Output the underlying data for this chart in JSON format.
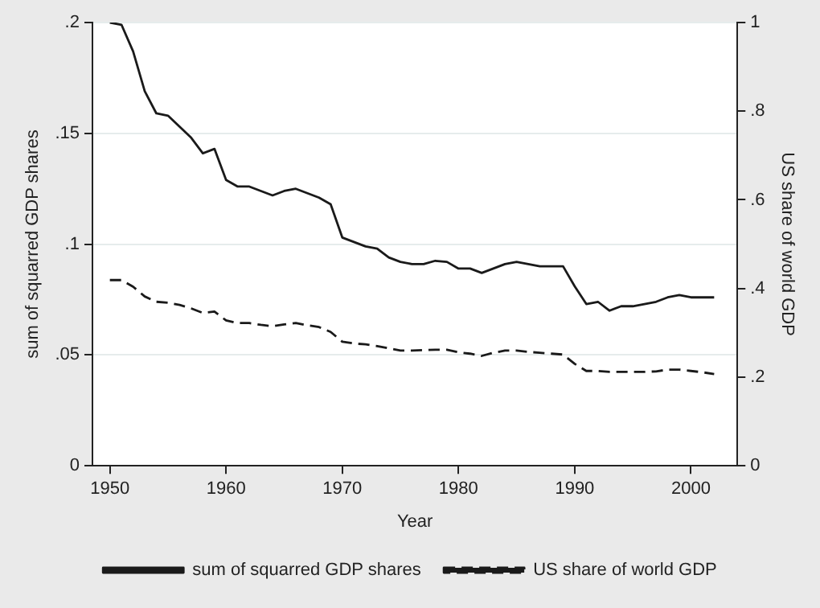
{
  "chart_data": {
    "type": "line",
    "xlabel": "Year",
    "ylabel": "sum of squarred GDP shares",
    "y2label": "US share of world GDP",
    "x": [
      1950,
      1951,
      1952,
      1953,
      1954,
      1955,
      1956,
      1957,
      1958,
      1959,
      1960,
      1961,
      1962,
      1963,
      1964,
      1965,
      1966,
      1967,
      1968,
      1969,
      1970,
      1971,
      1972,
      1973,
      1974,
      1975,
      1976,
      1977,
      1978,
      1979,
      1980,
      1981,
      1982,
      1983,
      1984,
      1985,
      1986,
      1987,
      1988,
      1989,
      1990,
      1991,
      1992,
      1993,
      1994,
      1995,
      1996,
      1997,
      1998,
      1999,
      2000,
      2001,
      2002
    ],
    "series": [
      {
        "name": "sum of squarred GDP shares",
        "color": "#1a1a1a",
        "line_style": "solid",
        "values": [
          0.2,
          0.199,
          0.187,
          0.169,
          0.159,
          0.158,
          0.153,
          0.148,
          0.141,
          0.143,
          0.129,
          0.126,
          0.126,
          0.124,
          0.122,
          0.124,
          0.125,
          0.123,
          0.121,
          0.118,
          0.103,
          0.101,
          0.099,
          0.098,
          0.094,
          0.092,
          0.091,
          0.091,
          0.0925,
          0.092,
          0.089,
          0.089,
          0.087,
          0.089,
          0.091,
          0.092,
          0.091,
          0.09,
          0.09,
          0.09,
          0.081,
          0.073,
          0.074,
          0.07,
          0.072,
          0.072,
          0.073,
          0.074,
          0.076,
          0.077,
          0.076,
          0.076,
          0.076
        ]
      },
      {
        "name": "US share of world GDP",
        "color": "#1a1a1a",
        "line_style": "dashed",
        "axis": "y2",
        "values": [
          0.419,
          0.419,
          0.404,
          0.382,
          0.37,
          0.368,
          0.363,
          0.355,
          0.345,
          0.348,
          0.328,
          0.322,
          0.322,
          0.318,
          0.315,
          0.319,
          0.322,
          0.317,
          0.313,
          0.302,
          0.28,
          0.276,
          0.274,
          0.27,
          0.265,
          0.26,
          0.26,
          0.261,
          0.262,
          0.262,
          0.256,
          0.253,
          0.248,
          0.255,
          0.26,
          0.26,
          0.257,
          0.255,
          0.253,
          0.251,
          0.23,
          0.214,
          0.214,
          0.212,
          0.212,
          0.212,
          0.212,
          0.213,
          0.217,
          0.217,
          0.214,
          0.211,
          0.207
        ]
      }
    ],
    "xlim": [
      1948.5,
      2004
    ],
    "xticks": [
      1950,
      1960,
      1970,
      1980,
      1990,
      2000
    ],
    "ylim": [
      0,
      0.2
    ],
    "yticks": [
      {
        "value": 0,
        "label": "0"
      },
      {
        "value": 0.05,
        "label": ".05"
      },
      {
        "value": 0.1,
        "label": ".1"
      },
      {
        "value": 0.15,
        "label": ".15"
      },
      {
        "value": 0.2,
        "label": ".2"
      }
    ],
    "y2lim": [
      0,
      1
    ],
    "y2ticks": [
      {
        "value": 0,
        "label": "0"
      },
      {
        "value": 0.2,
        "label": ".2"
      },
      {
        "value": 0.4,
        "label": ".4"
      },
      {
        "value": 0.6,
        "label": ".6"
      },
      {
        "value": 0.8,
        "label": ".8"
      },
      {
        "value": 1,
        "label": "1"
      }
    ],
    "grid": "y",
    "legend": "bottom",
    "marker": "none"
  }
}
